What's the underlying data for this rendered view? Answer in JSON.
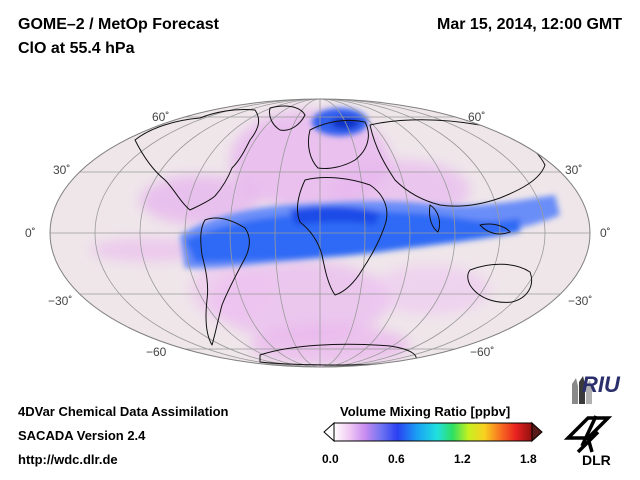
{
  "header": {
    "title_line1": "GOME–2 / MetOp Forecast",
    "title_line2": "ClO at 55.4 hPa",
    "datetime": "Mar 15, 2014, 12:00 GMT"
  },
  "map": {
    "projection": "Mollweide",
    "lat_labels_left": [
      "60˚",
      "30˚",
      "0˚",
      "−30˚",
      "−60"
    ],
    "lat_labels_right": [
      "60˚",
      "30˚",
      "0˚",
      "−30˚",
      "−60˚"
    ],
    "colors": {
      "background": "#efe6ea",
      "enhanced": "#e9b7ef",
      "high": "#2f6bf5",
      "peak": "#1030c8"
    }
  },
  "footer": {
    "line1": "4DVar Chemical Data Assimilation",
    "line2": "SACADA Version 2.4",
    "line3": "http://wdc.dlr.de"
  },
  "colorbar": {
    "label": "Volume Mixing Ratio [ppbv]",
    "ticks": [
      "0.0",
      "0.6",
      "1.2",
      "1.8"
    ],
    "min": 0.0,
    "max": 1.8
  },
  "logos": {
    "riu": "RIU",
    "dlr": "DLR"
  }
}
